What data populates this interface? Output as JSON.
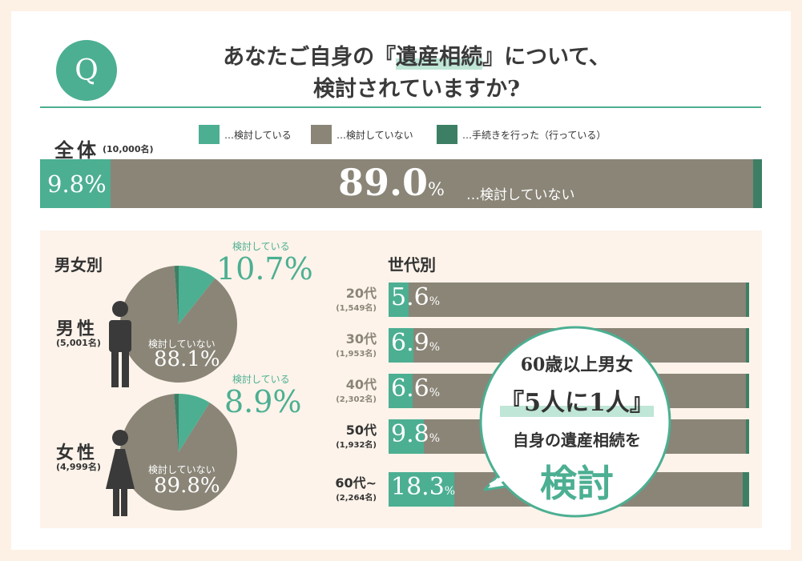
{
  "header": {
    "q_mark": "Q",
    "title_line1_pre": "あなたご自身の『",
    "title_line1_highlight": "遺産相続",
    "title_line1_post": "』について、",
    "title_line2": "検討されていますか?"
  },
  "legend": [
    {
      "label": "…検討している",
      "color": "#4caf92"
    },
    {
      "label": "…検討していない",
      "color": "#8a8577"
    },
    {
      "label": "…手続きを行った（行っている）",
      "color": "#3d7f64"
    }
  ],
  "total": {
    "label": "全体",
    "count": "(10,000名)",
    "pct_considering": "9.8%",
    "pct_not_value": "89.0",
    "pct_not_unit": "%",
    "note": "…検討していない"
  },
  "gender": {
    "title": "男女別",
    "male": {
      "name": "男性",
      "count": "(5,001名)",
      "considering_label": "検討している",
      "considering_pct": "10.7%",
      "not_label": "検討していない",
      "not_pct": "88.1%"
    },
    "female": {
      "name": "女性",
      "count": "(4,999名)",
      "considering_label": "検討している",
      "considering_pct": "8.9%",
      "not_label": "検討していない",
      "not_pct": "89.8%"
    }
  },
  "age": {
    "title": "世代別",
    "rows": [
      {
        "label": "20代",
        "count": "(1,549名)",
        "pct_num": "5.6",
        "pct_unit": "%"
      },
      {
        "label": "30代",
        "count": "(1,953名)",
        "pct_num": "6.9",
        "pct_unit": "%"
      },
      {
        "label": "40代",
        "count": "(2,302名)",
        "pct_num": "6.6",
        "pct_unit": "%"
      },
      {
        "label": "50代",
        "count": "(1,932名)",
        "pct_num": "9.8",
        "pct_unit": "%"
      },
      {
        "label": "60代~",
        "count": "(2,264名)",
        "pct_num": "18.3",
        "pct_unit": "%"
      }
    ]
  },
  "callout": {
    "line1": "60歳以上男女",
    "line2": "『5人に1人』",
    "line3": "自身の遺産相続を",
    "line4": "検討"
  },
  "chart_data": [
    {
      "type": "bar",
      "title": "全体",
      "categories": [
        "全体"
      ],
      "series": [
        {
          "name": "検討している",
          "values": [
            9.8
          ]
        },
        {
          "name": "検討していない",
          "values": [
            89.0
          ]
        },
        {
          "name": "手続きを行った（行っている）",
          "values": [
            1.2
          ]
        }
      ],
      "stacked": true,
      "xlim": [
        0,
        100
      ]
    },
    {
      "type": "pie",
      "title": "男性",
      "labels": [
        "検討している",
        "検討していない",
        "手続きを行った（行っている）"
      ],
      "values": [
        10.7,
        88.1,
        1.2
      ]
    },
    {
      "type": "pie",
      "title": "女性",
      "labels": [
        "検討している",
        "検討していない",
        "手続きを行った（行っている）"
      ],
      "values": [
        8.9,
        89.8,
        1.3
      ]
    },
    {
      "type": "bar",
      "title": "世代別",
      "categories": [
        "20代",
        "30代",
        "40代",
        "50代",
        "60代~"
      ],
      "series": [
        {
          "name": "検討している",
          "values": [
            5.6,
            6.9,
            6.6,
            9.8,
            18.3
          ]
        },
        {
          "name": "検討していない",
          "values": [
            93.6,
            92.1,
            92.4,
            89.2,
            80.0
          ]
        },
        {
          "name": "手続きを行った（行っている）",
          "values": [
            0.8,
            1.0,
            1.0,
            1.0,
            1.7
          ]
        }
      ],
      "stacked": true,
      "orientation": "horizontal",
      "xlim": [
        0,
        100
      ]
    }
  ]
}
